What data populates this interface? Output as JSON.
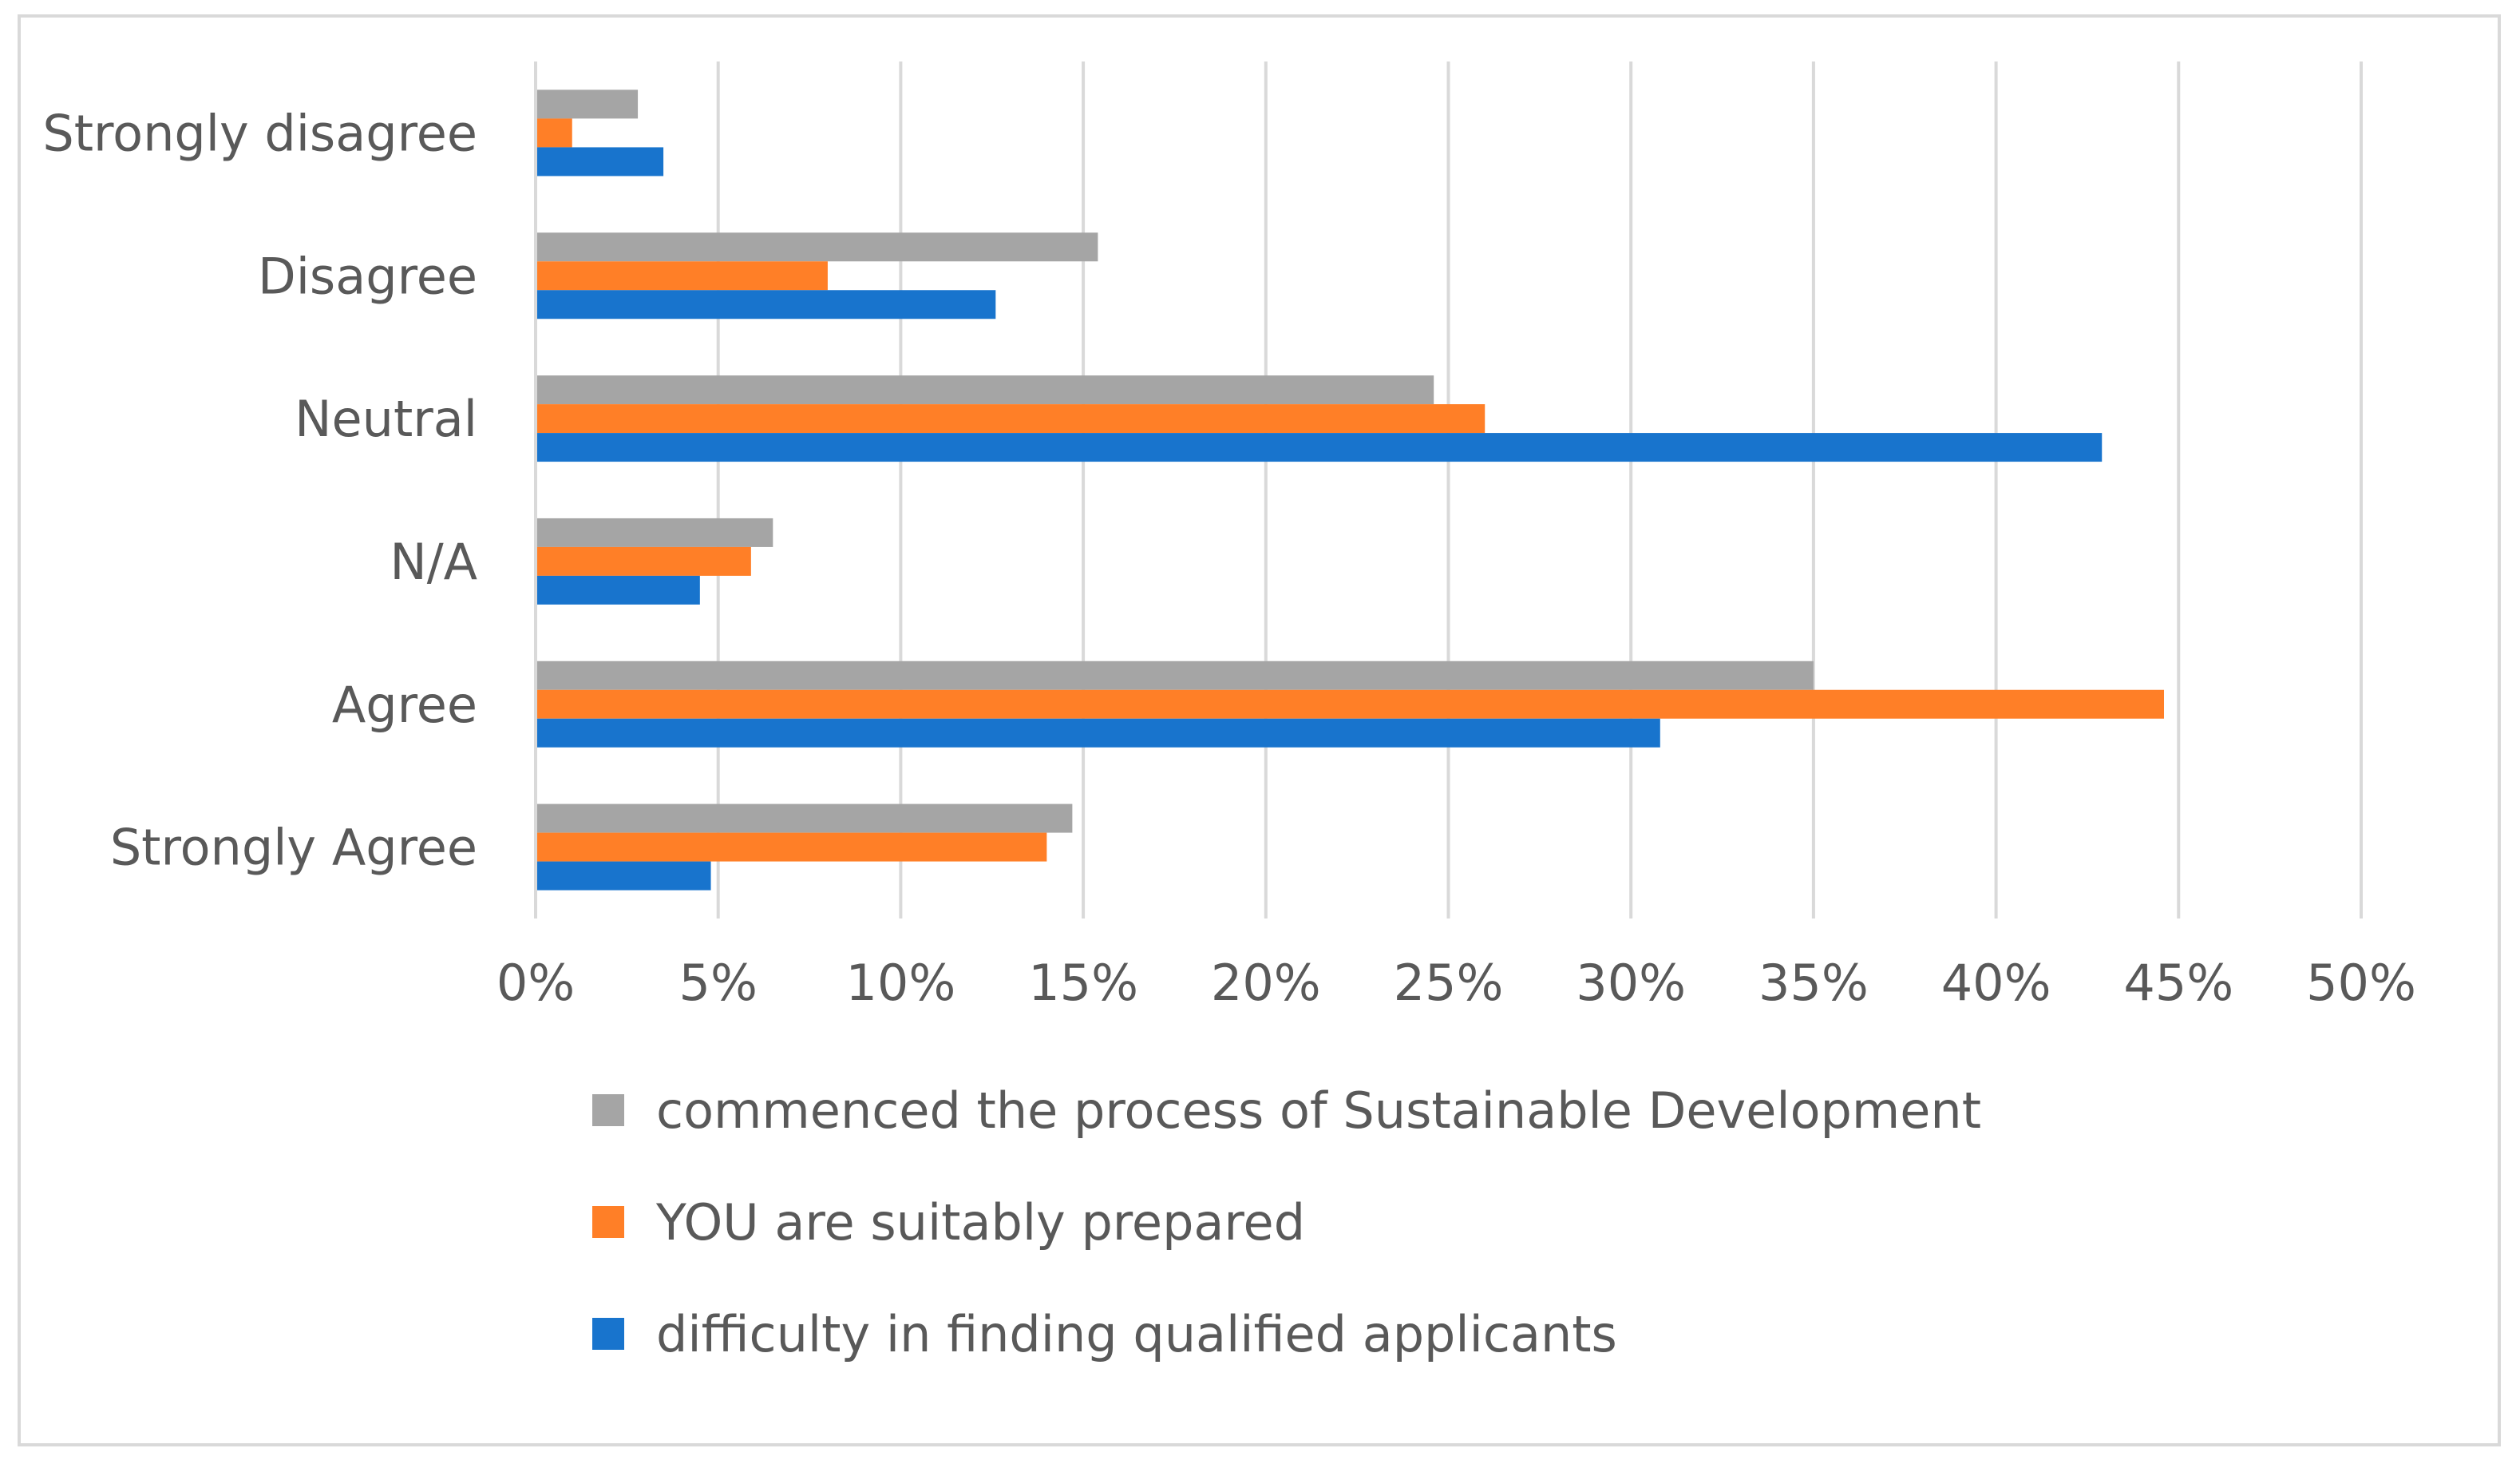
{
  "chart_data": {
    "type": "bar",
    "orientation": "horizontal",
    "title": "",
    "xlabel": "",
    "ylabel": "",
    "xlim": [
      0,
      50
    ],
    "tick_step": 5,
    "tick_labels": [
      "0%",
      "5%",
      "10%",
      "15%",
      "20%",
      "25%",
      "30%",
      "35%",
      "40%",
      "45%",
      "50%"
    ],
    "categories": [
      "Strongly disagree",
      "Disagree",
      "Neutral",
      "N/A",
      "Agree",
      "Strongly Agree"
    ],
    "series": [
      {
        "name": "commenced the process of Sustainable Development",
        "color": "#a5a5a5",
        "values": [
          2.8,
          15.4,
          24.6,
          6.5,
          35.0,
          14.7
        ]
      },
      {
        "name": "YOU are suitably prepared",
        "color": "#ff7f27",
        "values": [
          1.0,
          8.0,
          26.0,
          5.9,
          44.6,
          14.0
        ]
      },
      {
        "name": "difficulty in finding qualified applicants",
        "color": "#1874cd",
        "values": [
          3.5,
          12.6,
          42.9,
          4.5,
          30.8,
          4.8
        ]
      }
    ],
    "grid": true,
    "legend_position": "bottom"
  }
}
